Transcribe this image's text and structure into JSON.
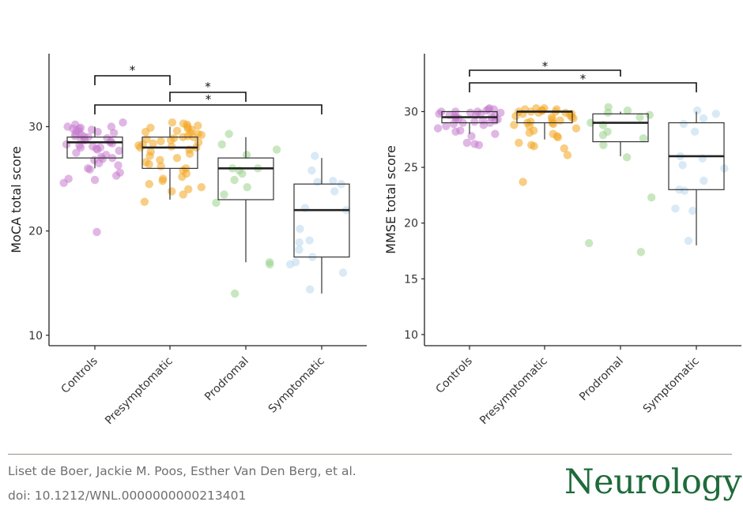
{
  "chart_data": [
    {
      "type": "box",
      "ylabel": "MoCA total score",
      "ylim": [
        9,
        37
      ],
      "yticks": [
        10,
        20,
        30
      ],
      "categories": [
        "Controls",
        "Presymptomatic",
        "Prodromal",
        "Symptomatic"
      ],
      "colors": [
        "#c77cce",
        "#f2a520",
        "#9bd48c",
        "#b9d8ee"
      ],
      "boxes": [
        {
          "q1": 27.0,
          "median": 28.5,
          "q3": 29.0,
          "whisker_low": 26.0,
          "whisker_high": 30.0
        },
        {
          "q1": 26.0,
          "median": 28.0,
          "q3": 29.0,
          "whisker_low": 23.0,
          "whisker_high": 30.0
        },
        {
          "q1": 23.0,
          "median": 26.0,
          "q3": 27.0,
          "whisker_low": 17.0,
          "whisker_high": 29.0
        },
        {
          "q1": 17.5,
          "median": 22.0,
          "q3": 24.5,
          "whisker_low": 14.0,
          "whisker_high": 27.0
        }
      ],
      "points": [
        [
          30.4,
          30.2,
          30.0,
          30.0,
          29.9,
          29.8,
          29.8,
          29.7,
          29.6,
          29.5,
          29.5,
          29.4,
          29.3,
          29.2,
          29.1,
          29.0,
          29.0,
          28.9,
          28.8,
          28.7,
          28.6,
          28.5,
          28.4,
          28.3,
          28.2,
          28.1,
          28.0,
          28.0,
          27.9,
          27.8,
          27.7,
          27.5,
          27.3,
          27.1,
          27.0,
          26.9,
          26.8,
          26.5,
          26.3,
          26.0,
          25.9,
          25.6,
          25.3,
          25.0,
          24.9,
          24.6,
          19.9
        ],
        [
          30.4,
          30.3,
          30.2,
          30.1,
          30.0,
          29.9,
          29.8,
          29.7,
          29.6,
          29.5,
          29.4,
          29.3,
          29.2,
          29.1,
          29.0,
          29.0,
          28.9,
          28.8,
          28.7,
          28.6,
          28.5,
          28.4,
          28.3,
          28.2,
          28.1,
          28.0,
          28.0,
          27.8,
          27.6,
          27.4,
          27.2,
          27.0,
          26.8,
          26.6,
          26.4,
          26.2,
          26.0,
          25.8,
          25.5,
          25.2,
          25.0,
          24.8,
          24.5,
          24.2,
          24.0,
          23.8,
          23.5,
          22.8
        ],
        [
          29.3,
          28.3,
          27.8,
          27.3,
          26.0,
          26.0,
          25.8,
          25.5,
          24.9,
          24.2,
          23.5,
          22.7,
          17.0,
          16.8,
          14.0
        ],
        [
          27.2,
          25.8,
          24.8,
          24.7,
          24.5,
          23.8,
          22.2,
          22.0,
          20.2,
          19.1,
          18.9,
          18.2,
          17.5,
          17.0,
          16.8,
          16.0,
          14.4
        ]
      ],
      "significance": [
        {
          "pair": [
            "Controls",
            "Presymptomatic"
          ],
          "label": "*"
        },
        {
          "pair": [
            "Presymptomatic",
            "Prodromal"
          ],
          "label": "*"
        },
        {
          "pair": [
            "Controls",
            "Symptomatic"
          ],
          "label": "*"
        }
      ]
    },
    {
      "type": "box",
      "ylabel": "MMSE total score",
      "ylim": [
        9,
        35.2
      ],
      "yticks": [
        10,
        15,
        20,
        25,
        30
      ],
      "categories": [
        "Controls",
        "Presymptomatic",
        "Prodromal",
        "Symptomatic"
      ],
      "colors": [
        "#c77cce",
        "#f2a520",
        "#9bd48c",
        "#b9d8ee"
      ],
      "boxes": [
        {
          "q1": 29.0,
          "median": 29.5,
          "q3": 30.0,
          "whisker_low": 28.0,
          "whisker_high": 30.0
        },
        {
          "q1": 29.0,
          "median": 30.0,
          "q3": 30.0,
          "whisker_low": 27.5,
          "whisker_high": 30.0
        },
        {
          "q1": 27.3,
          "median": 29.0,
          "q3": 29.8,
          "whisker_low": 26.0,
          "whisker_high": 30.0
        },
        {
          "q1": 23.0,
          "median": 26.0,
          "q3": 29.0,
          "whisker_low": 18.0,
          "whisker_high": 30.0
        }
      ],
      "points": [
        [
          30.3,
          30.2,
          30.2,
          30.1,
          30.0,
          30.0,
          30.0,
          29.9,
          29.9,
          29.8,
          29.8,
          29.7,
          29.7,
          29.6,
          29.6,
          29.5,
          29.5,
          29.4,
          29.4,
          29.3,
          29.2,
          29.2,
          29.1,
          29.0,
          29.0,
          28.9,
          28.8,
          28.7,
          28.5,
          28.3,
          28.2,
          28.0,
          27.8,
          27.2,
          27.0,
          27.1
        ],
        [
          30.3,
          30.3,
          30.2,
          30.2,
          30.1,
          30.1,
          30.0,
          30.0,
          30.0,
          29.9,
          29.9,
          29.8,
          29.8,
          29.7,
          29.6,
          29.5,
          29.5,
          29.4,
          29.3,
          29.2,
          29.1,
          29.0,
          29.0,
          28.9,
          28.8,
          28.7,
          28.5,
          28.3,
          28.1,
          28.0,
          27.8,
          27.7,
          27.2,
          27.0,
          26.9,
          26.7,
          26.1,
          23.7
        ],
        [
          30.4,
          30.1,
          29.9,
          29.7,
          29.5,
          29.0,
          28.8,
          28.2,
          27.9,
          27.6,
          27.0,
          25.9,
          22.3,
          18.2,
          17.4
        ],
        [
          30.1,
          29.8,
          29.4,
          28.9,
          28.2,
          26.0,
          25.8,
          25.2,
          24.9,
          23.8,
          23.0,
          22.9,
          21.3,
          21.1,
          18.4
        ]
      ],
      "significance": [
        {
          "pair": [
            "Controls",
            "Prodromal"
          ],
          "label": "*"
        },
        {
          "pair": [
            "Controls",
            "Symptomatic"
          ],
          "label": "*"
        }
      ]
    }
  ],
  "footer": {
    "authors": "Liset de Boer, Jackie M. Poos, Esther Van Den Berg, et al.",
    "doi": "doi: 10.1212/WNL.0000000000213401",
    "journal": "Neurology",
    "registered": "®"
  }
}
